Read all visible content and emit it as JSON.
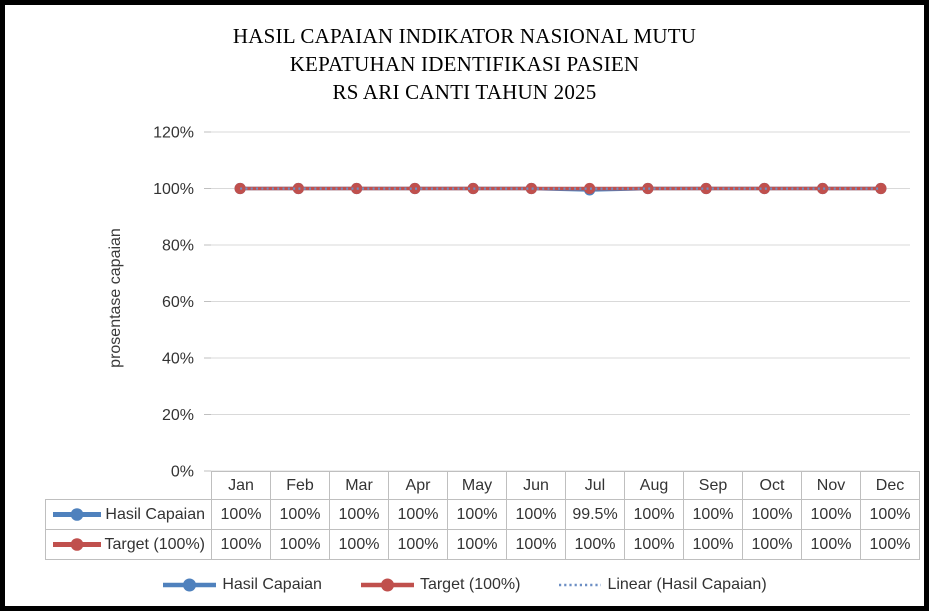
{
  "title": {
    "line1": "HASIL CAPAIAN INDIKATOR NASIONAL MUTU",
    "line2": "KEPATUHAN IDENTIFIKASI PASIEN",
    "line3": "RS ARI CANTI TAHUN 2025"
  },
  "y_axis": {
    "label": "prosentase capaian",
    "ticks": [
      "120%",
      "100%",
      "80%",
      "60%",
      "40%",
      "20%",
      "0%"
    ]
  },
  "chart_data": {
    "type": "line",
    "categories": [
      "Jan",
      "Feb",
      "Mar",
      "Apr",
      "May",
      "Jun",
      "Jul",
      "Aug",
      "Sep",
      "Oct",
      "Nov",
      "Dec"
    ],
    "series": [
      {
        "name": "Hasil Capaian",
        "color": "#4f81bd",
        "values": [
          100,
          100,
          100,
          100,
          100,
          100,
          99.5,
          100,
          100,
          100,
          100,
          100
        ]
      },
      {
        "name": "Target (100%)",
        "color": "#c0504d",
        "values": [
          100,
          100,
          100,
          100,
          100,
          100,
          100,
          100,
          100,
          100,
          100,
          100
        ]
      }
    ],
    "trendline": {
      "name": "Linear (Hasil Capaian)",
      "color": "#6d8fc4",
      "style": "dotted",
      "start_value": 99.97,
      "end_value": 99.95
    },
    "title": "HASIL CAPAIAN INDIKATOR NASIONAL MUTU KEPATUHAN IDENTIFIKASI PASIEN RS ARI CANTI TAHUN 2025",
    "xlabel": "",
    "ylabel": "prosentase capaian",
    "ylim": [
      0,
      120
    ],
    "y_tick_step": 20,
    "y_tick_format": "percent",
    "grid": true,
    "legend_position": "bottom"
  },
  "table": {
    "columns": [
      "Jan",
      "Feb",
      "Mar",
      "Apr",
      "May",
      "Jun",
      "Jul",
      "Aug",
      "Sep",
      "Oct",
      "Nov",
      "Dec"
    ],
    "rows": [
      {
        "label": "Hasil Capaian",
        "color": "#4f81bd",
        "values": [
          "100%",
          "100%",
          "100%",
          "100%",
          "100%",
          "100%",
          "99.5%",
          "100%",
          "100%",
          "100%",
          "100%",
          "100%"
        ]
      },
      {
        "label": "Target (100%)",
        "color": "#c0504d",
        "values": [
          "100%",
          "100%",
          "100%",
          "100%",
          "100%",
          "100%",
          "100%",
          "100%",
          "100%",
          "100%",
          "100%",
          "100%"
        ]
      }
    ]
  },
  "legend": {
    "items": [
      {
        "label": "Hasil Capaian",
        "color": "#4f81bd",
        "style": "line-marker"
      },
      {
        "label": "Target (100%)",
        "color": "#c0504d",
        "style": "line-marker"
      },
      {
        "label": "Linear (Hasil Capaian)",
        "color": "#6d8fc4",
        "style": "dotted"
      }
    ]
  },
  "colors": {
    "series_blue": "#4f81bd",
    "series_red": "#c0504d",
    "trendline_blue": "#6d8fc4",
    "gridline": "#d9d9d9",
    "tick": "#bfbfbf",
    "table_border": "#bfbfbf",
    "text": "#333333",
    "frame_border": "#000000",
    "background": "#ffffff"
  }
}
